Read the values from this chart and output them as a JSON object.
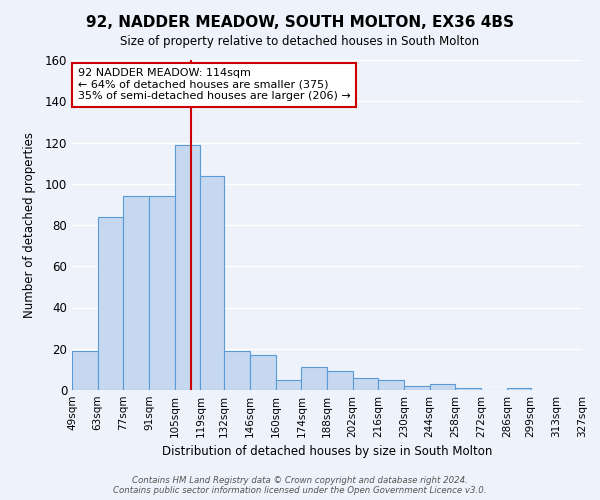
{
  "title": "92, NADDER MEADOW, SOUTH MOLTON, EX36 4BS",
  "subtitle": "Size of property relative to detached houses in South Molton",
  "xlabel": "Distribution of detached houses by size in South Molton",
  "ylabel": "Number of detached properties",
  "bar_values": [
    19,
    84,
    94,
    94,
    119,
    104,
    19,
    17,
    5,
    11,
    9,
    6,
    5,
    2,
    3,
    1,
    0,
    1
  ],
  "bin_labels": [
    "49sqm",
    "63sqm",
    "77sqm",
    "91sqm",
    "105sqm",
    "119sqm",
    "132sqm",
    "146sqm",
    "160sqm",
    "174sqm",
    "188sqm",
    "202sqm",
    "216sqm",
    "230sqm",
    "244sqm",
    "258sqm",
    "272sqm",
    "286sqm",
    "299sqm",
    "313sqm",
    "327sqm"
  ],
  "bin_edges": [
    49,
    63,
    77,
    91,
    105,
    119,
    132,
    146,
    160,
    174,
    188,
    202,
    216,
    230,
    244,
    258,
    272,
    286,
    299,
    313,
    327
  ],
  "bar_color": "#c5d8f0",
  "bar_edge_color": "#5b9bd5",
  "property_value": 114,
  "vline_color": "#cc0000",
  "annotation_line1": "92 NADDER MEADOW: 114sqm",
  "annotation_line2": "← 64% of detached houses are smaller (375)",
  "annotation_line3": "35% of semi-detached houses are larger (206) →",
  "annotation_box_color": "#ffffff",
  "annotation_box_edge_color": "#cc0000",
  "ylim": [
    0,
    160
  ],
  "yticks": [
    0,
    20,
    40,
    60,
    80,
    100,
    120,
    140,
    160
  ],
  "bg_color": "#eef2fa",
  "footer_line1": "Contains HM Land Registry data © Crown copyright and database right 2024.",
  "footer_line2": "Contains public sector information licensed under the Open Government Licence v3.0."
}
